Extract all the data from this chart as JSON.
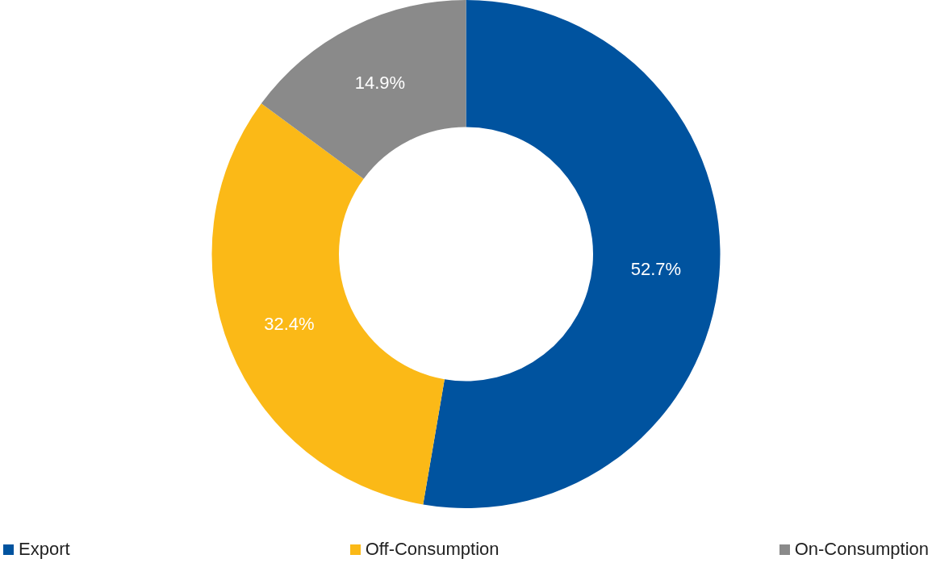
{
  "chart_data": {
    "type": "donut",
    "categories": [
      "Export",
      "Off-Consumption",
      "On-Consumption"
    ],
    "values": [
      52.7,
      32.4,
      14.9
    ],
    "colors": [
      "#00539f",
      "#fbb917",
      "#8a8a8a"
    ],
    "value_labels": [
      "52.7%",
      "32.4%",
      "14.9%"
    ],
    "legend": "bottom"
  }
}
